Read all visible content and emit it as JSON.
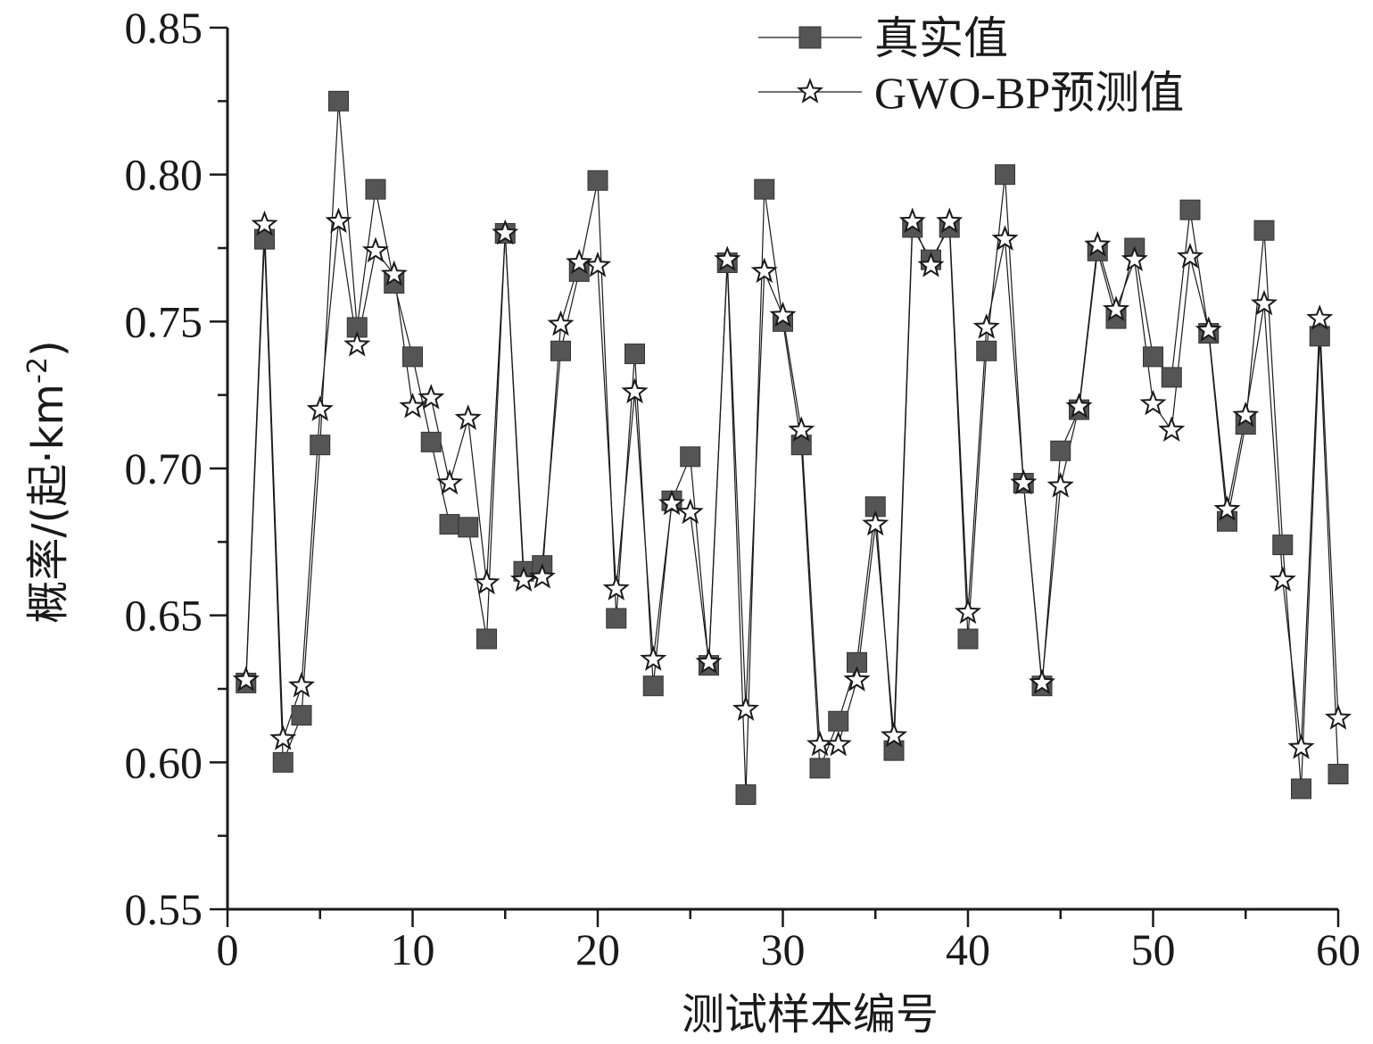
{
  "chart_data": {
    "type": "line",
    "xlabel": "测试样本编号",
    "ylabel": "概率/(起·km⁻²)",
    "ylabel_parts": {
      "prefix": "概率/(起·km",
      "sup": "-2",
      "suffix": ")"
    },
    "xlim": [
      0,
      60
    ],
    "ylim": [
      0.55,
      0.85
    ],
    "xticks": [
      0,
      10,
      20,
      30,
      40,
      50,
      60
    ],
    "xtick_labels": [
      "0",
      "10",
      "20",
      "30",
      "40",
      "50",
      "60"
    ],
    "yticks": [
      0.55,
      0.6,
      0.65,
      0.7,
      0.75,
      0.8,
      0.85
    ],
    "ytick_labels": [
      "0.55",
      "0.60",
      "0.65",
      "0.70",
      "0.75",
      "0.80",
      "0.85"
    ],
    "legend_position": "top-right",
    "grid": false,
    "x": [
      1,
      2,
      3,
      4,
      5,
      6,
      7,
      8,
      9,
      10,
      11,
      12,
      13,
      14,
      15,
      16,
      17,
      18,
      19,
      20,
      21,
      22,
      23,
      24,
      25,
      26,
      27,
      28,
      29,
      30,
      31,
      32,
      33,
      34,
      35,
      36,
      37,
      38,
      39,
      40,
      41,
      42,
      43,
      44,
      45,
      46,
      47,
      48,
      49,
      50,
      51,
      52,
      53,
      54,
      55,
      56,
      57,
      58,
      59,
      60
    ],
    "series": [
      {
        "name": "真实值",
        "marker": "square",
        "color": "#555555",
        "values": [
          0.627,
          0.778,
          0.6,
          0.616,
          0.708,
          0.825,
          0.748,
          0.795,
          0.763,
          0.738,
          0.709,
          0.681,
          0.68,
          0.642,
          0.78,
          0.665,
          0.667,
          0.74,
          0.767,
          0.798,
          0.649,
          0.739,
          0.626,
          0.689,
          0.704,
          0.633,
          0.77,
          0.589,
          0.795,
          0.75,
          0.708,
          0.598,
          0.614,
          0.634,
          0.687,
          0.604,
          0.782,
          0.771,
          0.782,
          0.642,
          0.74,
          0.8,
          0.695,
          0.626,
          0.706,
          0.72,
          0.774,
          0.751,
          0.775,
          0.738,
          0.731,
          0.788,
          0.746,
          0.682,
          0.715,
          0.781,
          0.674,
          0.591,
          0.745,
          0.596
        ]
      },
      {
        "name": "GWO-BP预测值",
        "marker": "star",
        "color": "#ffffff",
        "values": [
          0.628,
          0.783,
          0.608,
          0.626,
          0.72,
          0.784,
          0.742,
          0.774,
          0.766,
          0.721,
          0.724,
          0.695,
          0.717,
          0.661,
          0.78,
          0.662,
          0.663,
          0.749,
          0.77,
          0.769,
          0.659,
          0.726,
          0.635,
          0.688,
          0.685,
          0.634,
          0.771,
          0.618,
          0.767,
          0.752,
          0.713,
          0.606,
          0.606,
          0.628,
          0.681,
          0.609,
          0.784,
          0.769,
          0.784,
          0.651,
          0.748,
          0.778,
          0.695,
          0.627,
          0.694,
          0.721,
          0.776,
          0.754,
          0.771,
          0.722,
          0.713,
          0.772,
          0.747,
          0.686,
          0.718,
          0.756,
          0.662,
          0.605,
          0.751,
          0.615
        ]
      }
    ]
  }
}
